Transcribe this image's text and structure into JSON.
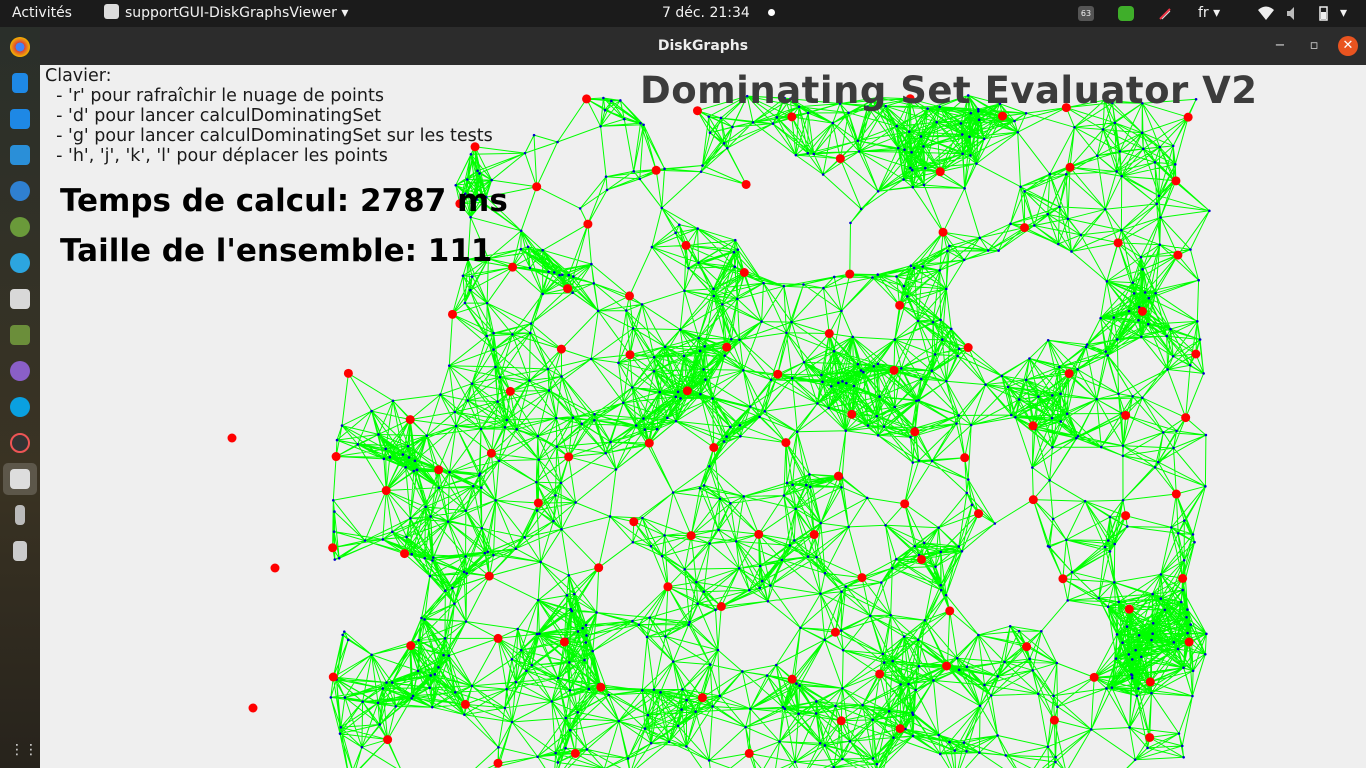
{
  "topbar": {
    "activities": "Activités",
    "app_menu": "supportGUI-DiskGraphsViewer",
    "clock": "7 déc.  21:34",
    "lang": "fr",
    "badge": "63"
  },
  "window": {
    "title": "DiskGraphs"
  },
  "help": {
    "heading": "Clavier:",
    "lines": [
      "  - 'r' pour rafraîchir le nuage de points",
      "  - 'd' pour lancer calculDominatingSet",
      "  - 'g' pour lancer calculDominatingSet sur les tests",
      "  - 'h', 'j', 'k', 'l' pour déplacer les points"
    ]
  },
  "app_title": "Dominating Set Evaluator V2",
  "stats": {
    "time_label": "Temps de calcul: 2787 ms",
    "size_label": "Taille de l'ensemble: 111"
  },
  "colors": {
    "edges": "#00ff00",
    "dominating_points": "#ff0000",
    "points": "#0000cc",
    "background": "#efefef",
    "accent_close": "#e95420"
  },
  "dock_icons": [
    "chrome-icon",
    "text-editor-icon",
    "vscode-icon",
    "software-center-icon",
    "help-icon",
    "browser-icon",
    "telegram-icon",
    "files-icon",
    "minecraft-icon",
    "github-icon",
    "skype-icon",
    "settings-icon",
    "diskgraphs-icon",
    "trash-icon",
    "drive-icon",
    "app-grid-icon"
  ]
}
